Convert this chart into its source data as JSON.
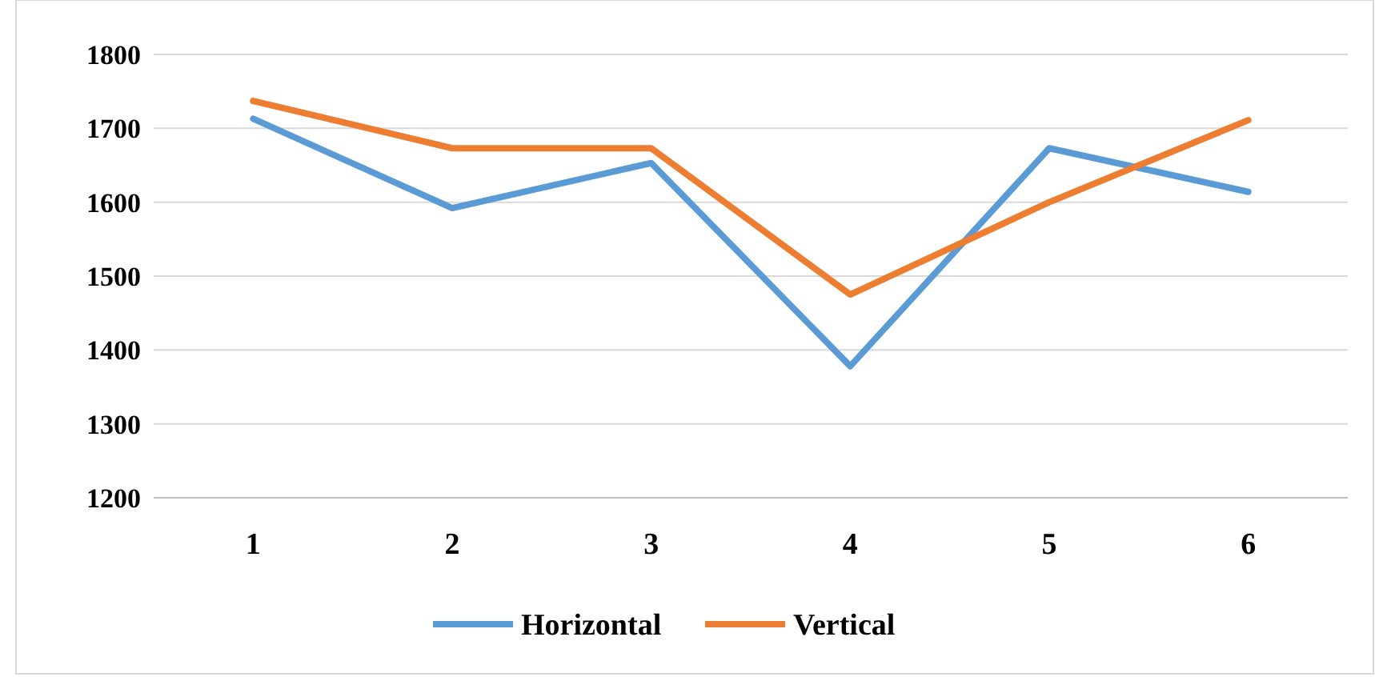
{
  "chart_data": {
    "type": "line",
    "categories": [
      "1",
      "2",
      "3",
      "4",
      "5",
      "6"
    ],
    "series": [
      {
        "name": "Horizontal",
        "color": "#5b9bd5",
        "values": [
          1713,
          1592,
          1653,
          1378,
          1673,
          1614
        ]
      },
      {
        "name": "Vertical",
        "color": "#ed7d31",
        "values": [
          1737,
          1673,
          1673,
          1475,
          1600,
          1711
        ]
      }
    ],
    "ylim": [
      1200,
      1800
    ],
    "yticks": [
      1200,
      1300,
      1400,
      1500,
      1600,
      1700,
      1800
    ],
    "grid": "y",
    "legend": "bottom",
    "marker": "none",
    "line_style": "solid"
  }
}
